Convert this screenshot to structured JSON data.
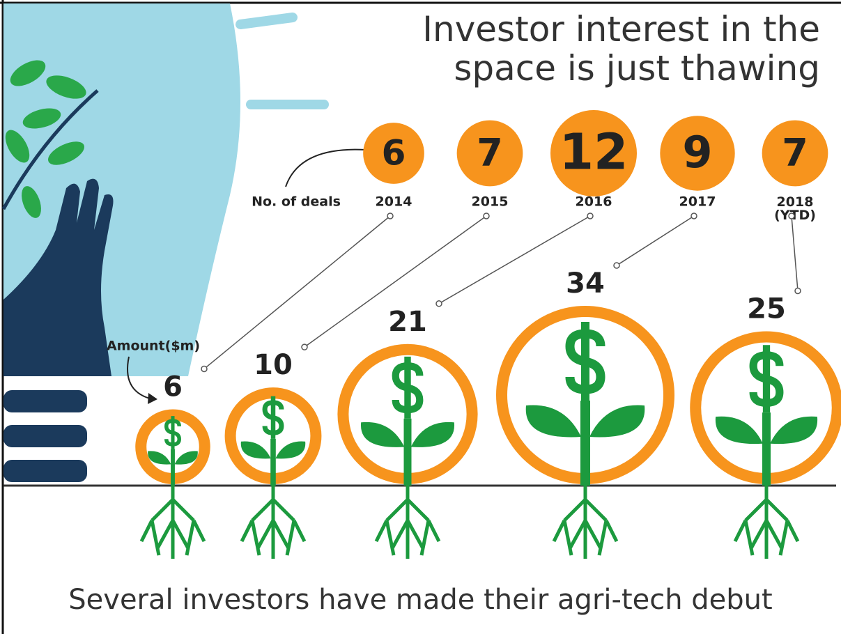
{
  "chart_data": {
    "type": "bubble",
    "title": "Investor interest in the space is just thawing",
    "caption": "Several investors have made their agri-tech debut",
    "categories": [
      "2014",
      "2015",
      "2016",
      "2017",
      "2018 (YTD)"
    ],
    "series": [
      {
        "name": "No. of deals",
        "color": "#f7941d",
        "values": [
          6,
          7,
          12,
          9,
          7
        ]
      },
      {
        "name": "Amount($m)",
        "color": "#f7941d",
        "values": [
          6,
          10,
          21,
          34,
          25
        ]
      }
    ],
    "plant_color": "#1c9a3e"
  }
}
